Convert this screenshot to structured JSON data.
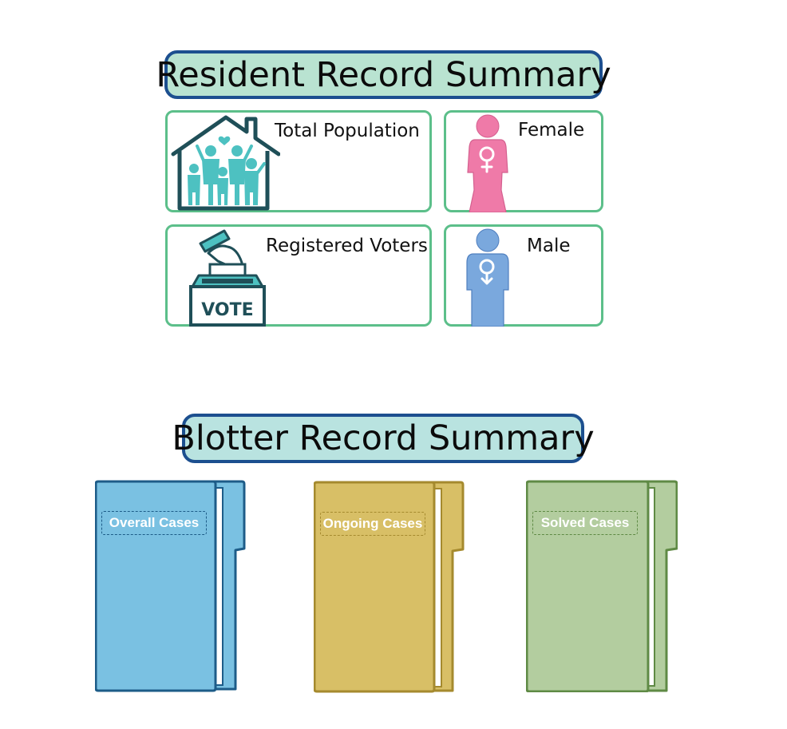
{
  "resident_summary": {
    "title": "Resident Record Summary",
    "cards": {
      "total_population": {
        "label": "Total Population",
        "icon": "family-house-icon"
      },
      "female": {
        "label": "Female",
        "icon": "female-person-icon"
      },
      "registered_voters": {
        "label": "Registered Voters",
        "icon": "ballot-box-icon",
        "icon_text": "VOTE"
      },
      "male": {
        "label": "Male",
        "icon": "male-person-icon"
      }
    }
  },
  "blotter_summary": {
    "title": "Blotter Record Summary",
    "folders": {
      "overall": {
        "label": "Overall Cases",
        "color": "#7ac1e2"
      },
      "ongoing": {
        "label": "Ongoing Cases",
        "color": "#d8bf66"
      },
      "solved": {
        "label": "Solved Cases",
        "color": "#b3cd9f"
      }
    }
  },
  "colors": {
    "title_border": "#1c4f8f",
    "card_border": "#5cbf8a",
    "female": "#ef7aa8",
    "male": "#7aa8dd",
    "family_teal": "#4dc1c1"
  }
}
